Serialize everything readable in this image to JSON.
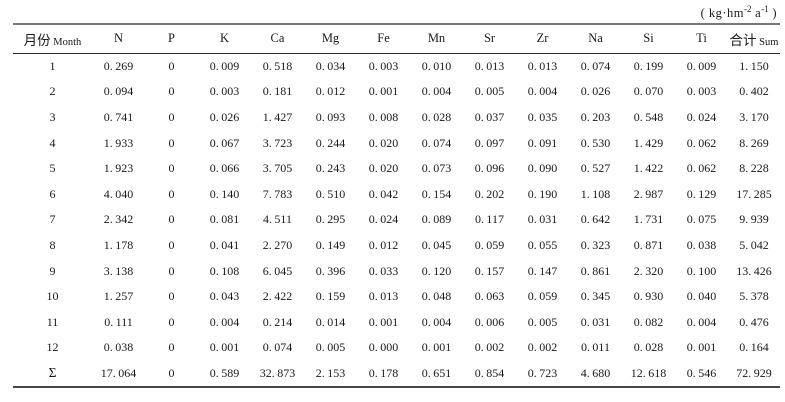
{
  "unit": {
    "open": "( kg·hm",
    "sup1": "-2",
    "base2": " a",
    "sup2": "-1",
    "close": " )"
  },
  "table": {
    "header": {
      "month": {
        "cn": "月份",
        "en": "Month"
      },
      "elements": [
        "N",
        "P",
        "K",
        "Ca",
        "Mg",
        "Fe",
        "Mn",
        "Sr",
        "Zr",
        "Na",
        "Si",
        "Ti"
      ],
      "sum": {
        "cn": "合计",
        "en": "Sum"
      }
    },
    "rows": [
      {
        "month": "1",
        "values": [
          "0.269",
          "0",
          "0.009",
          "0.518",
          "0.034",
          "0.003",
          "0.010",
          "0.013",
          "0.013",
          "0.074",
          "0.199",
          "0.009"
        ],
        "sum": "1.150"
      },
      {
        "month": "2",
        "values": [
          "0.094",
          "0",
          "0.003",
          "0.181",
          "0.012",
          "0.001",
          "0.004",
          "0.005",
          "0.004",
          "0.026",
          "0.070",
          "0.003"
        ],
        "sum": "0.402"
      },
      {
        "month": "3",
        "values": [
          "0.741",
          "0",
          "0.026",
          "1.427",
          "0.093",
          "0.008",
          "0.028",
          "0.037",
          "0.035",
          "0.203",
          "0.548",
          "0.024"
        ],
        "sum": "3.170"
      },
      {
        "month": "4",
        "values": [
          "1.933",
          "0",
          "0.067",
          "3.723",
          "0.244",
          "0.020",
          "0.074",
          "0.097",
          "0.091",
          "0.530",
          "1.429",
          "0.062"
        ],
        "sum": "8.269"
      },
      {
        "month": "5",
        "values": [
          "1.923",
          "0",
          "0.066",
          "3.705",
          "0.243",
          "0.020",
          "0.073",
          "0.096",
          "0.090",
          "0.527",
          "1.422",
          "0.062"
        ],
        "sum": "8.228"
      },
      {
        "month": "6",
        "values": [
          "4.040",
          "0",
          "0.140",
          "7.783",
          "0.510",
          "0.042",
          "0.154",
          "0.202",
          "0.190",
          "1.108",
          "2.987",
          "0.129"
        ],
        "sum": "17.285"
      },
      {
        "month": "7",
        "values": [
          "2.342",
          "0",
          "0.081",
          "4.511",
          "0.295",
          "0.024",
          "0.089",
          "0.117",
          "0.031",
          "0.642",
          "1.731",
          "0.075"
        ],
        "sum": "9.939"
      },
      {
        "month": "8",
        "values": [
          "1.178",
          "0",
          "0.041",
          "2.270",
          "0.149",
          "0.012",
          "0.045",
          "0.059",
          "0.055",
          "0.323",
          "0.871",
          "0.038"
        ],
        "sum": "5.042"
      },
      {
        "month": "9",
        "values": [
          "3.138",
          "0",
          "0.108",
          "6.045",
          "0.396",
          "0.033",
          "0.120",
          "0.157",
          "0.147",
          "0.861",
          "2.320",
          "0.100"
        ],
        "sum": "13.426"
      },
      {
        "month": "10",
        "values": [
          "1.257",
          "0",
          "0.043",
          "2.422",
          "0.159",
          "0.013",
          "0.048",
          "0.063",
          "0.059",
          "0.345",
          "0.930",
          "0.040"
        ],
        "sum": "5.378"
      },
      {
        "month": "11",
        "values": [
          "0.111",
          "0",
          "0.004",
          "0.214",
          "0.014",
          "0.001",
          "0.004",
          "0.006",
          "0.005",
          "0.031",
          "0.082",
          "0.004"
        ],
        "sum": "0.476"
      },
      {
        "month": "12",
        "values": [
          "0.038",
          "0",
          "0.001",
          "0.074",
          "0.005",
          "0.000",
          "0.001",
          "0.002",
          "0.002",
          "0.011",
          "0.028",
          "0.001"
        ],
        "sum": "0.164"
      }
    ],
    "total_row": {
      "month": "Σ",
      "values": [
        "17.064",
        "0",
        "0.589",
        "32.873",
        "2.153",
        "0.178",
        "0.651",
        "0.854",
        "0.723",
        "4.680",
        "12.618",
        "0.546"
      ],
      "sum": "72.929"
    }
  }
}
